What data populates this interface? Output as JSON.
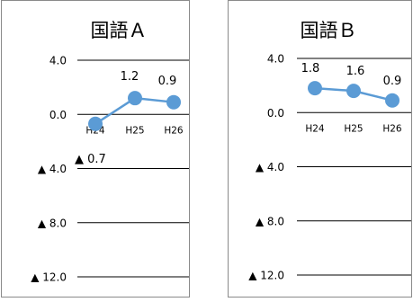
{
  "chart_data": [
    {
      "type": "line",
      "title": "国語Ａ",
      "categories": [
        "H24",
        "H25",
        "H26"
      ],
      "series": [
        {
          "values": [
            -0.7,
            1.2,
            0.9
          ],
          "data_labels": [
            "▲ 0.7",
            "1.2",
            "0.9"
          ]
        }
      ],
      "ylim": [
        -12.0,
        4.0
      ],
      "yticks": [
        4.0,
        0.0,
        -4.0,
        -8.0,
        -12.0
      ],
      "ytick_labels": [
        "4.0",
        "0.0",
        "▲ 4.0",
        "▲ 8.0",
        "▲ 12.0"
      ],
      "xlabel": "",
      "ylabel": "",
      "grid": true,
      "color": "#5b9bd5"
    },
    {
      "type": "line",
      "title": "国語Ｂ",
      "categories": [
        "H24",
        "H25",
        "H26"
      ],
      "series": [
        {
          "values": [
            1.8,
            1.6,
            0.9
          ],
          "data_labels": [
            "1.8",
            "1.6",
            "0.9"
          ]
        }
      ],
      "ylim": [
        -12.0,
        4.0
      ],
      "yticks": [
        4.0,
        0.0,
        -4.0,
        -8.0,
        -12.0
      ],
      "ytick_labels": [
        "4.0",
        "0.0",
        "▲ 4.0",
        "▲ 8.0",
        "▲ 12.0"
      ],
      "xlabel": "",
      "ylabel": "",
      "grid": true,
      "color": "#5b9bd5"
    }
  ]
}
